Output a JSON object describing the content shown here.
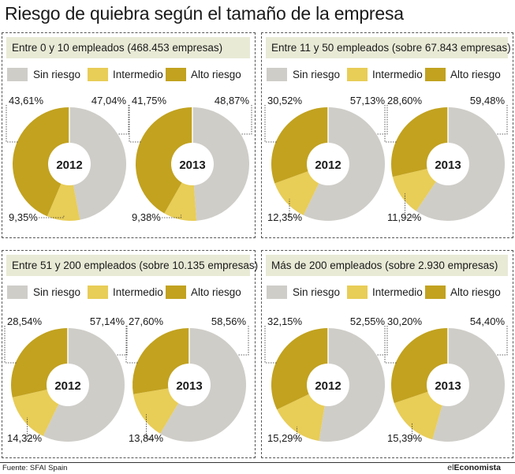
{
  "title": "Riesgo de quiebra según el tamaño de la empresa",
  "source": "Fuente: SFAI Spain",
  "logo": {
    "part1": "el",
    "part2": "Economista"
  },
  "colors": {
    "sin_riesgo": "#cfcdc8",
    "intermedio": "#e8cd57",
    "alto_riesgo": "#c2a21f",
    "panel_header": "#e9ead6"
  },
  "chart_data": [
    {
      "type": "pie",
      "title": "Entre 0 y 10 empleados (468.453 empresas)",
      "legend": [
        "Sin riesgo",
        "Intermedio",
        "Alto riesgo"
      ],
      "donuts": [
        {
          "year": "2012",
          "values": [
            47.04,
            9.35,
            43.61
          ],
          "labels": [
            "47,04%",
            "9,35%",
            "43,61%"
          ]
        },
        {
          "year": "2013",
          "values": [
            48.87,
            9.38,
            41.75
          ],
          "labels": [
            "48,87%",
            "9,38%",
            "41,75%"
          ]
        }
      ]
    },
    {
      "type": "pie",
      "title": "Entre 11 y 50 empleados (sobre 67.843 empresas)",
      "legend": [
        "Sin riesgo",
        "Intermedio",
        "Alto riesgo"
      ],
      "donuts": [
        {
          "year": "2012",
          "values": [
            57.13,
            12.35,
            30.52
          ],
          "labels": [
            "57,13%",
            "12,35%",
            "30,52%"
          ]
        },
        {
          "year": "2013",
          "values": [
            59.48,
            11.92,
            28.6
          ],
          "labels": [
            "59,48%",
            "11,92%",
            "28,60%"
          ]
        }
      ]
    },
    {
      "type": "pie",
      "title": "Entre 51 y 200 empleados (sobre 10.135 empresas)",
      "legend": [
        "Sin riesgo",
        "Intermedio",
        "Alto riesgo"
      ],
      "donuts": [
        {
          "year": "2012",
          "values": [
            57.14,
            14.32,
            28.54
          ],
          "labels": [
            "57,14%",
            "14,32%",
            "28,54%"
          ]
        },
        {
          "year": "2013",
          "values": [
            58.56,
            13.84,
            27.6
          ],
          "labels": [
            "58,56%",
            "13,84%",
            "27,60%"
          ]
        }
      ]
    },
    {
      "type": "pie",
      "title": "Más de 200 empleados (sobre 2.930 empresas)",
      "legend": [
        "Sin riesgo",
        "Intermedio",
        "Alto riesgo"
      ],
      "donuts": [
        {
          "year": "2012",
          "values": [
            52.55,
            15.29,
            32.15
          ],
          "labels": [
            "52,55%",
            "15,29%",
            "32,15%"
          ]
        },
        {
          "year": "2013",
          "values": [
            54.4,
            15.39,
            30.2
          ],
          "labels": [
            "54,40%",
            "15,39%",
            "30,20%"
          ]
        }
      ]
    }
  ]
}
